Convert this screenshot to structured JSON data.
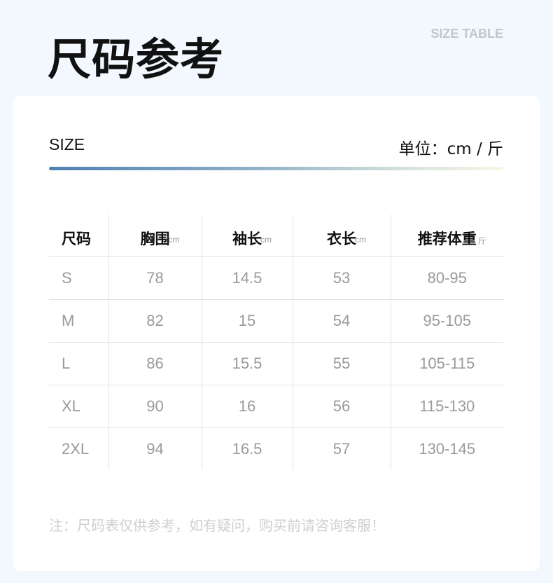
{
  "header": {
    "title": "尺码参考",
    "subtitle": "SIZE TABLE"
  },
  "card": {
    "size_label": "SIZE",
    "unit_label": "单位：cm / 斤",
    "bar_colors": [
      "#4e80b2",
      "#f6f8e6"
    ]
  },
  "table": {
    "headers": [
      {
        "label": "尺码",
        "unit": ""
      },
      {
        "label": "胸围",
        "unit": "cm"
      },
      {
        "label": "袖长",
        "unit": "cm"
      },
      {
        "label": "衣长",
        "unit": "cm"
      },
      {
        "label": "推荐体重",
        "unit": "斤"
      }
    ],
    "rows": [
      [
        "S",
        "78",
        "14.5",
        "53",
        "80-95"
      ],
      [
        "M",
        "82",
        "15",
        "54",
        "95-105"
      ],
      [
        "L",
        "86",
        "15.5",
        "55",
        "105-115"
      ],
      [
        "XL",
        "90",
        "16",
        "56",
        "115-130"
      ],
      [
        "2XL",
        "94",
        "16.5",
        "57",
        "130-145"
      ]
    ]
  },
  "note": "注：尺码表仅供参考，如有疑问，购买前请咨询客服！"
}
